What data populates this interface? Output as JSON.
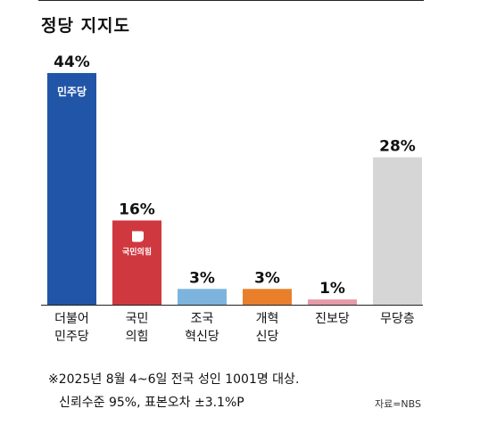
{
  "chart_data": {
    "type": "bar",
    "title": "정당 지지도",
    "categories": [
      [
        "더불어",
        "민주당"
      ],
      [
        "국민",
        "의힘"
      ],
      [
        "조국",
        "혁신당"
      ],
      [
        "개혁",
        "신당"
      ],
      [
        "진보당"
      ],
      [
        "무당층"
      ]
    ],
    "values": [
      44,
      16,
      3,
      3,
      1,
      28
    ],
    "value_labels": [
      "44%",
      "16%",
      "3%",
      "3%",
      "1%",
      "28%"
    ],
    "colors": [
      "#2155a8",
      "#d0383f",
      "#7cb4de",
      "#ea7f2b",
      "#e79aa7",
      "#d6d6d6"
    ],
    "logos": [
      "민주당",
      "국민의힘"
    ],
    "grid": false,
    "legend": "none"
  },
  "footnote": {
    "line1": "※2025년 8월 4~6일 전국 성인 1001명 대상.",
    "line2": "신뢰수준 95%, 표본오차 ±3.1%P"
  },
  "source": "자료=NBS"
}
